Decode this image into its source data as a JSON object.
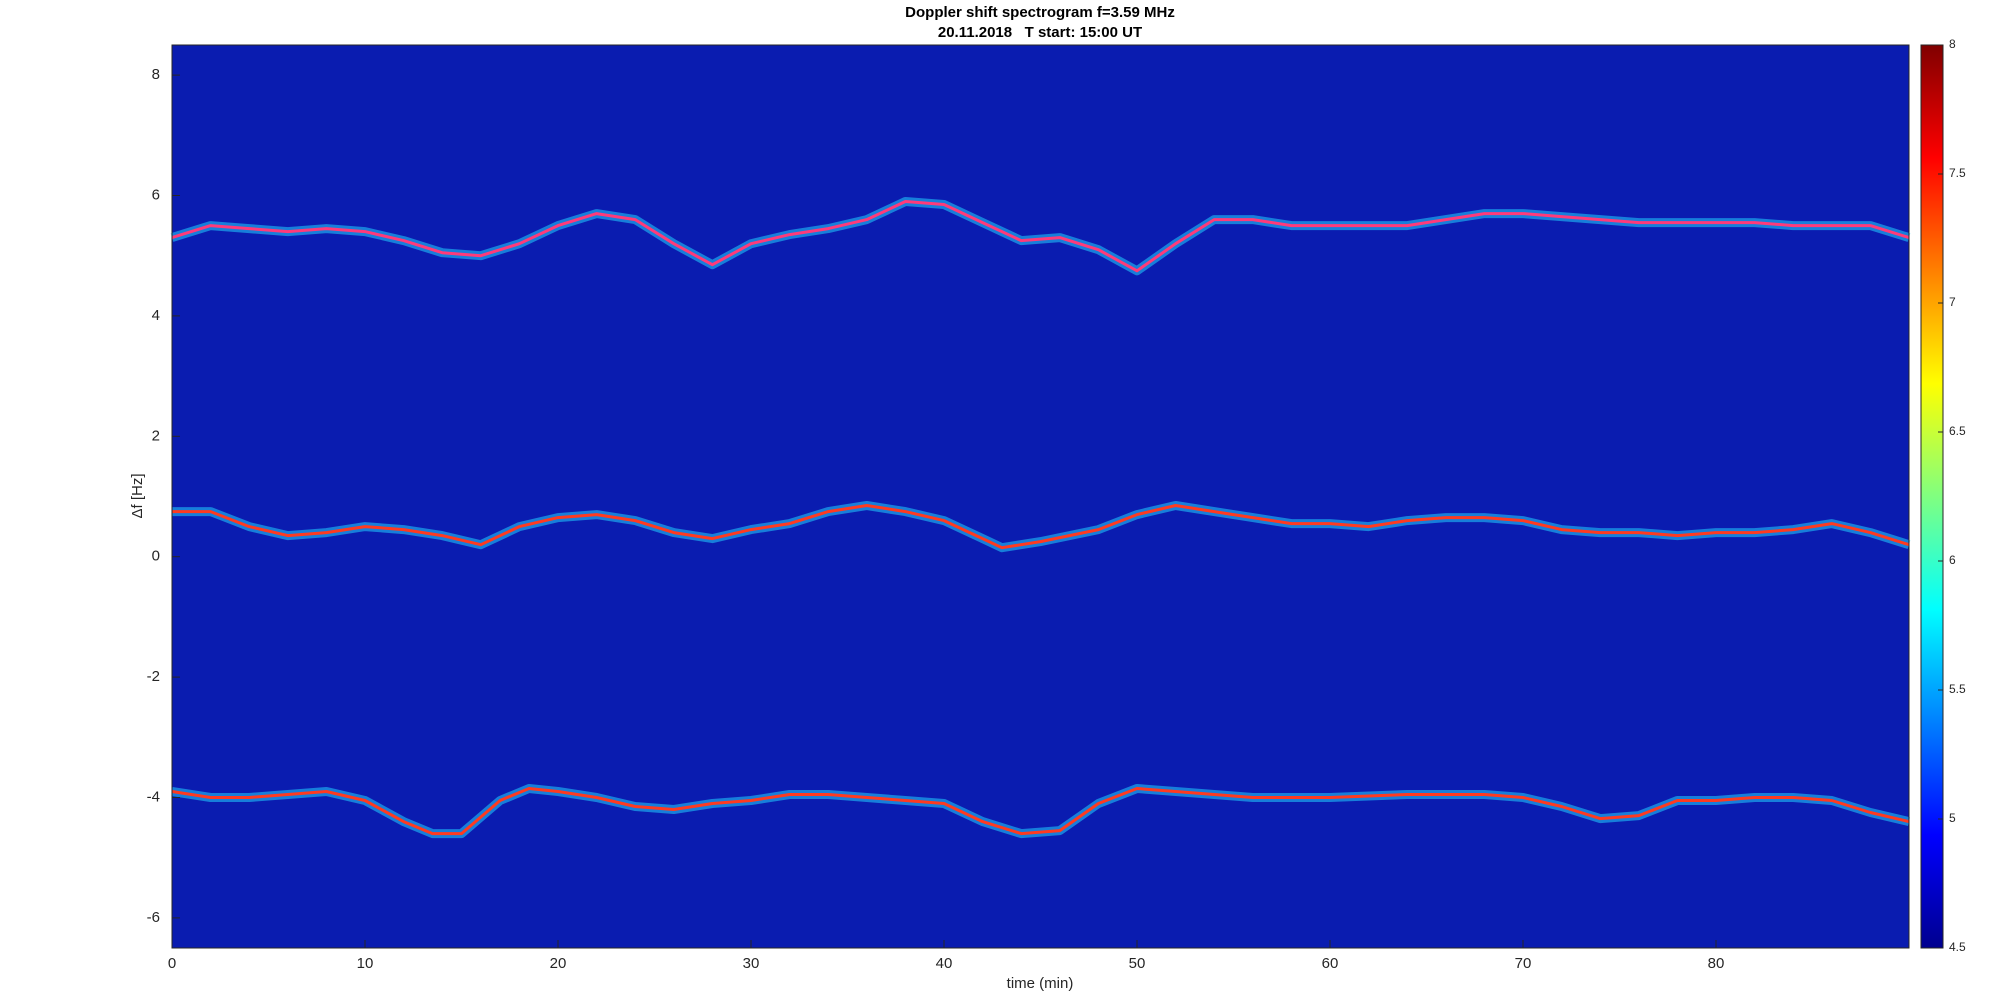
{
  "chart_data": {
    "type": "spectrogram",
    "title": "Doppler shift spectrogram f=3.59 MHz",
    "subtitle": "20.11.2018   T start: 15:00 UT",
    "x_label": "time (min)",
    "y_label": "Δf [Hz]",
    "xlim": [
      0,
      90
    ],
    "xticks": [
      0,
      10,
      20,
      30,
      40,
      50,
      60,
      70,
      80
    ],
    "ylim": [
      -6.5,
      8.5
    ],
    "yticks": [
      -6,
      -4,
      -2,
      0,
      2,
      4,
      6,
      8
    ],
    "background_color": "#0a1cb0",
    "series": [
      {
        "color": "#ff3a7a",
        "x": [
          0,
          2,
          4,
          6,
          8,
          10,
          12,
          14,
          16,
          18,
          20,
          22,
          24,
          26,
          28,
          30,
          32,
          34,
          36,
          38,
          40,
          42,
          44,
          46,
          48,
          50,
          52,
          54,
          56,
          58,
          60,
          62,
          64,
          66,
          68,
          70,
          72,
          74,
          76,
          78,
          80,
          82,
          84,
          86,
          88,
          90
        ],
        "values": [
          5.3,
          5.5,
          5.45,
          5.4,
          5.45,
          5.4,
          5.25,
          5.05,
          5.0,
          5.2,
          5.5,
          5.7,
          5.6,
          5.2,
          4.85,
          5.2,
          5.35,
          5.45,
          5.6,
          5.9,
          5.85,
          5.55,
          5.25,
          5.3,
          5.1,
          4.75,
          5.2,
          5.6,
          5.6,
          5.5,
          5.5,
          5.5,
          5.5,
          5.6,
          5.7,
          5.7,
          5.65,
          5.6,
          5.55,
          5.55,
          5.55,
          5.55,
          5.5,
          5.5,
          5.5,
          5.3
        ]
      },
      {
        "color": "#ff3a20",
        "x": [
          0,
          2,
          4,
          6,
          8,
          10,
          12,
          14,
          16,
          18,
          20,
          22,
          24,
          26,
          28,
          30,
          32,
          34,
          36,
          38,
          40,
          42,
          43,
          45,
          48,
          50,
          52,
          54,
          56,
          58,
          60,
          62,
          64,
          66,
          68,
          70,
          72,
          74,
          76,
          78,
          80,
          82,
          84,
          86,
          88,
          90
        ],
        "values": [
          0.75,
          0.75,
          0.5,
          0.35,
          0.4,
          0.5,
          0.45,
          0.35,
          0.2,
          0.5,
          0.65,
          0.7,
          0.6,
          0.4,
          0.3,
          0.45,
          0.55,
          0.75,
          0.85,
          0.75,
          0.6,
          0.3,
          0.15,
          0.25,
          0.45,
          0.7,
          0.85,
          0.75,
          0.65,
          0.55,
          0.55,
          0.5,
          0.6,
          0.65,
          0.65,
          0.6,
          0.45,
          0.4,
          0.4,
          0.35,
          0.4,
          0.4,
          0.45,
          0.55,
          0.4,
          0.2
        ]
      },
      {
        "color": "#ff3a20",
        "x": [
          0,
          2,
          4,
          6,
          8,
          10,
          12,
          13.5,
          15,
          17,
          18.5,
          20,
          22,
          24,
          26,
          28,
          30,
          32,
          34,
          36,
          38,
          40,
          42,
          44,
          46,
          48,
          50,
          52,
          54,
          56,
          60,
          64,
          68,
          70,
          72,
          74,
          76,
          78,
          80,
          82,
          84,
          86,
          88,
          90
        ],
        "values": [
          -3.9,
          -4.0,
          -4.0,
          -3.95,
          -3.9,
          -4.05,
          -4.4,
          -4.6,
          -4.6,
          -4.05,
          -3.85,
          -3.9,
          -4.0,
          -4.15,
          -4.2,
          -4.1,
          -4.05,
          -3.95,
          -3.95,
          -4.0,
          -4.05,
          -4.1,
          -4.4,
          -4.6,
          -4.55,
          -4.1,
          -3.85,
          -3.9,
          -3.95,
          -4.0,
          -4.0,
          -3.95,
          -3.95,
          -4.0,
          -4.15,
          -4.35,
          -4.3,
          -4.05,
          -4.05,
          -4.0,
          -4.0,
          -4.05,
          -4.25,
          -4.4
        ]
      }
    ],
    "colorbar": {
      "lim": [
        4.5,
        8
      ],
      "ticks": [
        4.5,
        5,
        5.5,
        6,
        6.5,
        7,
        7.5,
        8
      ],
      "colormap": [
        "#00008f",
        "#0000ff",
        "#0080ff",
        "#00ffff",
        "#80ff80",
        "#ffff00",
        "#ff8000",
        "#ff0000",
        "#800000"
      ]
    }
  }
}
